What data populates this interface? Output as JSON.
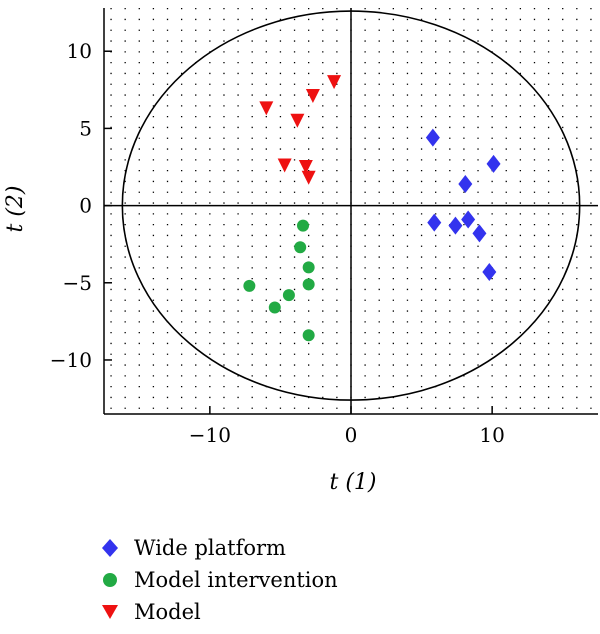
{
  "chart_data": {
    "type": "scatter",
    "xlabel": "t (1)",
    "ylabel": "t (2)",
    "xlim": [
      -17.5,
      17.5
    ],
    "ylim": [
      -13.5,
      12.8
    ],
    "xticks": [
      -10,
      0,
      10
    ],
    "yticks": [
      10,
      5,
      0,
      -5,
      -10
    ],
    "xtick_labels": [
      "−10",
      "0",
      "10"
    ],
    "ytick_labels": [
      "10",
      "5",
      "0",
      "−5",
      "−10"
    ],
    "grid": "dotted",
    "ellipse": {
      "cx": 0,
      "cy": 0,
      "rx": 16.2,
      "ry": 12.6
    },
    "legend_position": "bottom",
    "series": [
      {
        "name": "Wide platform",
        "marker": "diamond",
        "color": "#3333ee",
        "points": [
          [
            5.8,
            4.4
          ],
          [
            10.1,
            2.7
          ],
          [
            8.1,
            1.4
          ],
          [
            5.9,
            -1.1
          ],
          [
            7.4,
            -1.3
          ],
          [
            8.3,
            -0.9
          ],
          [
            9.1,
            -1.8
          ],
          [
            9.8,
            -4.3
          ]
        ]
      },
      {
        "name": "Model intervention",
        "marker": "circle",
        "color": "#22aa44",
        "points": [
          [
            -3.4,
            -1.3
          ],
          [
            -3.6,
            -2.7
          ],
          [
            -3.0,
            -4.0
          ],
          [
            -7.2,
            -5.2
          ],
          [
            -3.0,
            -5.1
          ],
          [
            -4.4,
            -5.8
          ],
          [
            -5.4,
            -6.6
          ],
          [
            -3.0,
            -8.4
          ]
        ]
      },
      {
        "name": "Model",
        "marker": "triangle-down",
        "color": "#ee1111",
        "points": [
          [
            -1.2,
            8.0
          ],
          [
            -6.0,
            6.3
          ],
          [
            -2.7,
            7.1
          ],
          [
            -3.8,
            5.5
          ],
          [
            -4.7,
            2.6
          ],
          [
            -3.2,
            2.5
          ],
          [
            -3.0,
            1.8
          ]
        ]
      }
    ]
  }
}
